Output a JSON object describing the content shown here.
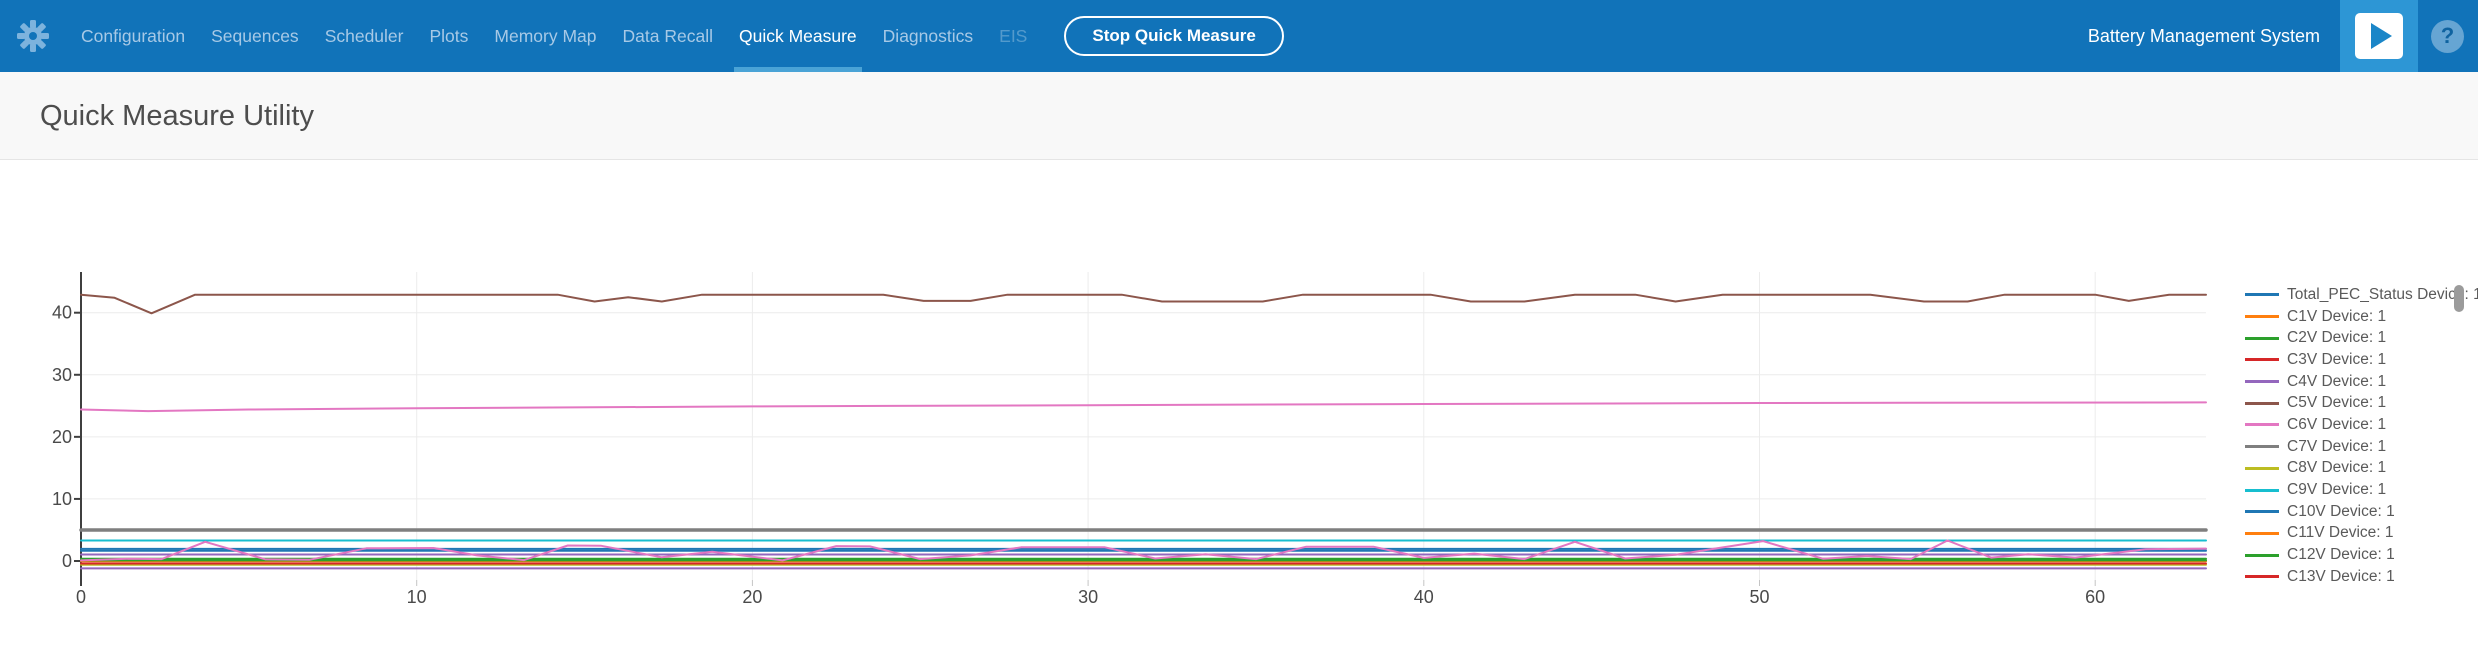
{
  "colors": {
    "navbar_background": "#1173b9",
    "active_tab_underline": "#4aa3d6",
    "play_button_background": "#2d96d5",
    "subheader_background": "#f8f8f8"
  },
  "icons": {
    "settings": "gear",
    "run": "play-triangle",
    "help_glyph": "?"
  },
  "navbar": {
    "items": [
      {
        "label": "Configuration"
      },
      {
        "label": "Sequences"
      },
      {
        "label": "Scheduler"
      },
      {
        "label": "Plots"
      },
      {
        "label": "Memory Map"
      },
      {
        "label": "Data Recall"
      },
      {
        "label": "Quick Measure",
        "active": true
      },
      {
        "label": "Diagnostics"
      },
      {
        "label": "EIS",
        "disabled": true
      }
    ],
    "stop_button_label": "Stop Quick Measure",
    "app_title": "Battery Management System"
  },
  "page": {
    "title": "Quick Measure Utility"
  },
  "chart_data": {
    "type": "line",
    "title": "",
    "xlabel": "",
    "ylabel": "",
    "xlim": [
      0,
      63.3
    ],
    "ylim": [
      -2.7,
      46.5
    ],
    "x_ticks": [
      0,
      10,
      20,
      30,
      40,
      50,
      60
    ],
    "y_ticks": [
      0,
      10,
      20,
      30,
      40
    ],
    "grid": true,
    "legend_position": "right",
    "legend_scrollable": true,
    "series": [
      {
        "name": "Total_PEC_Status Device: 1",
        "color": "#1f77b4",
        "y_flat": 1.95
      },
      {
        "name": "C1V Device: 1",
        "color": "#ff7f0e",
        "y_flat": 0.08
      },
      {
        "name": "C2V Device: 1",
        "color": "#2ca02c",
        "y_flat": 0.35
      },
      {
        "name": "C3V Device: 1",
        "color": "#d62728",
        "y_flat": 0.02
      },
      {
        "name": "C4V Device: 1",
        "color": "#9467bd",
        "y_flat": 1.05
      },
      {
        "name": "C5V Device: 1",
        "color": "#8c564b",
        "points": [
          [
            0,
            42.9
          ],
          [
            1,
            42.4
          ],
          [
            2.1,
            39.9
          ],
          [
            3.4,
            42.9
          ],
          [
            14.2,
            42.9
          ],
          [
            15.3,
            41.8
          ],
          [
            16.3,
            42.5
          ],
          [
            17.3,
            41.8
          ],
          [
            18.5,
            42.9
          ],
          [
            23.9,
            42.9
          ],
          [
            25.1,
            41.9
          ],
          [
            26.5,
            41.9
          ],
          [
            27.6,
            42.9
          ],
          [
            31,
            42.9
          ],
          [
            32.2,
            41.8
          ],
          [
            35.2,
            41.8
          ],
          [
            36.4,
            42.9
          ],
          [
            40.2,
            42.9
          ],
          [
            41.4,
            41.8
          ],
          [
            43,
            41.8
          ],
          [
            44.5,
            42.9
          ],
          [
            46.3,
            42.9
          ],
          [
            47.5,
            41.8
          ],
          [
            48.9,
            42.9
          ],
          [
            53.3,
            42.9
          ],
          [
            54.9,
            41.8
          ],
          [
            56.2,
            41.8
          ],
          [
            57.3,
            42.9
          ],
          [
            60,
            42.9
          ],
          [
            61,
            41.9
          ],
          [
            62.2,
            42.9
          ],
          [
            63.3,
            42.9
          ]
        ]
      },
      {
        "name": "C6V Device: 1",
        "color": "#e377c2",
        "points": [
          [
            0,
            24.4
          ],
          [
            2,
            24.15
          ],
          [
            5,
            24.4
          ],
          [
            10,
            24.6
          ],
          [
            20,
            24.9
          ],
          [
            30,
            25.1
          ],
          [
            40,
            25.3
          ],
          [
            50,
            25.45
          ],
          [
            63.3,
            25.55
          ]
        ]
      },
      {
        "name": "C7V Device: 1",
        "color": "#7f7f7f",
        "y_flat": 5.0,
        "width": 3.5
      },
      {
        "name": "C8V Device: 1",
        "color": "#bcbd22",
        "y_flat": -0.6
      },
      {
        "name": "C9V Device: 1",
        "color": "#17becf",
        "y_flat": 3.3
      },
      {
        "name": "C10V Device: 1",
        "color": "#1f77b4",
        "y_flat": 1.65
      },
      {
        "name": "C11V Device: 1",
        "color": "#ff7f0e",
        "y_flat": -0.05
      },
      {
        "name": "C12V Device: 1",
        "color": "#2ca02c",
        "y_flat": 0.1
      },
      {
        "name": "C13V Device: 1",
        "color": "#d62728",
        "y_flat": -0.4
      },
      {
        "name": "unlabeled purple series",
        "color": "#9467bd",
        "y_flat": -1.2,
        "in_legend": false
      },
      {
        "name": "unlabeled pink oscillating series",
        "color": "#e377c2",
        "in_legend": false,
        "points": [
          [
            0,
            0.1
          ],
          [
            1.4,
            0.35
          ],
          [
            2.4,
            0.3
          ],
          [
            3.7,
            3.1
          ],
          [
            5.5,
            0.25
          ],
          [
            6.8,
            0.2
          ],
          [
            8.5,
            2.05
          ],
          [
            10.5,
            2.1
          ],
          [
            11.8,
            0.9
          ],
          [
            13.2,
            0.15
          ],
          [
            14.5,
            2.5
          ],
          [
            15.5,
            2.45
          ],
          [
            17.3,
            0.6
          ],
          [
            18.8,
            1.5
          ],
          [
            20.9,
            0.1
          ],
          [
            22.5,
            2.4
          ],
          [
            23.5,
            2.35
          ],
          [
            25,
            0.3
          ],
          [
            26.5,
            0.9
          ],
          [
            28,
            2.2
          ],
          [
            30.5,
            2.2
          ],
          [
            32,
            0.4
          ],
          [
            33.5,
            1.1
          ],
          [
            35,
            0.3
          ],
          [
            36.5,
            2.3
          ],
          [
            38.5,
            2.3
          ],
          [
            40,
            0.5
          ],
          [
            41.5,
            1.2
          ],
          [
            43,
            0.3
          ],
          [
            44.5,
            3.1
          ],
          [
            46,
            0.4
          ],
          [
            47.5,
            1.0
          ],
          [
            50.1,
            3.2
          ],
          [
            51.9,
            0.35
          ],
          [
            53.2,
            0.8
          ],
          [
            54.5,
            0.3
          ],
          [
            55.6,
            3.3
          ],
          [
            56.9,
            0.55
          ],
          [
            58,
            1.1
          ],
          [
            59.4,
            0.55
          ],
          [
            61.5,
            1.9
          ],
          [
            63.3,
            2.0
          ]
        ]
      }
    ]
  }
}
